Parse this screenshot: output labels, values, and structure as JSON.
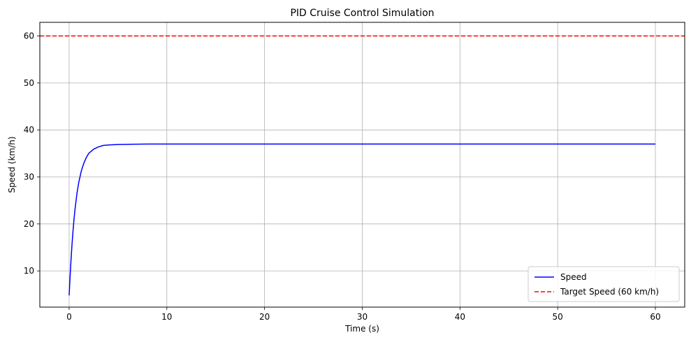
{
  "chart_data": {
    "type": "line",
    "title": "PID Cruise Control Simulation",
    "xlabel": "Time (s)",
    "ylabel": "Speed (km/h)",
    "xlim": [
      -3,
      63
    ],
    "ylim": [
      2.3,
      62.9
    ],
    "xticks": [
      0,
      10,
      20,
      30,
      40,
      50,
      60
    ],
    "yticks": [
      10,
      20,
      30,
      40,
      50,
      60
    ],
    "grid": true,
    "legend_position": "lower-right",
    "series": [
      {
        "name": "Speed",
        "color": "#0000ff",
        "style": "solid",
        "x": [
          0,
          0.1,
          0.2,
          0.3,
          0.4,
          0.5,
          0.6,
          0.8,
          1.0,
          1.25,
          1.5,
          1.75,
          2.0,
          2.5,
          3.0,
          3.5,
          4.0,
          5.0,
          6.0,
          8.0,
          10,
          20,
          30,
          40,
          50,
          60
        ],
        "y": [
          4.8,
          8.9,
          12.6,
          15.8,
          18.6,
          21.0,
          23.1,
          26.5,
          29.0,
          31.3,
          32.9,
          34.1,
          35.0,
          35.9,
          36.4,
          36.7,
          36.8,
          36.9,
          36.95,
          37.0,
          37.0,
          37.0,
          37.0,
          37.0,
          37.0,
          37.0
        ]
      },
      {
        "name": "Target Speed (60 km/h)",
        "color": "#ff0000",
        "style": "dashed",
        "hline": 60
      }
    ]
  }
}
